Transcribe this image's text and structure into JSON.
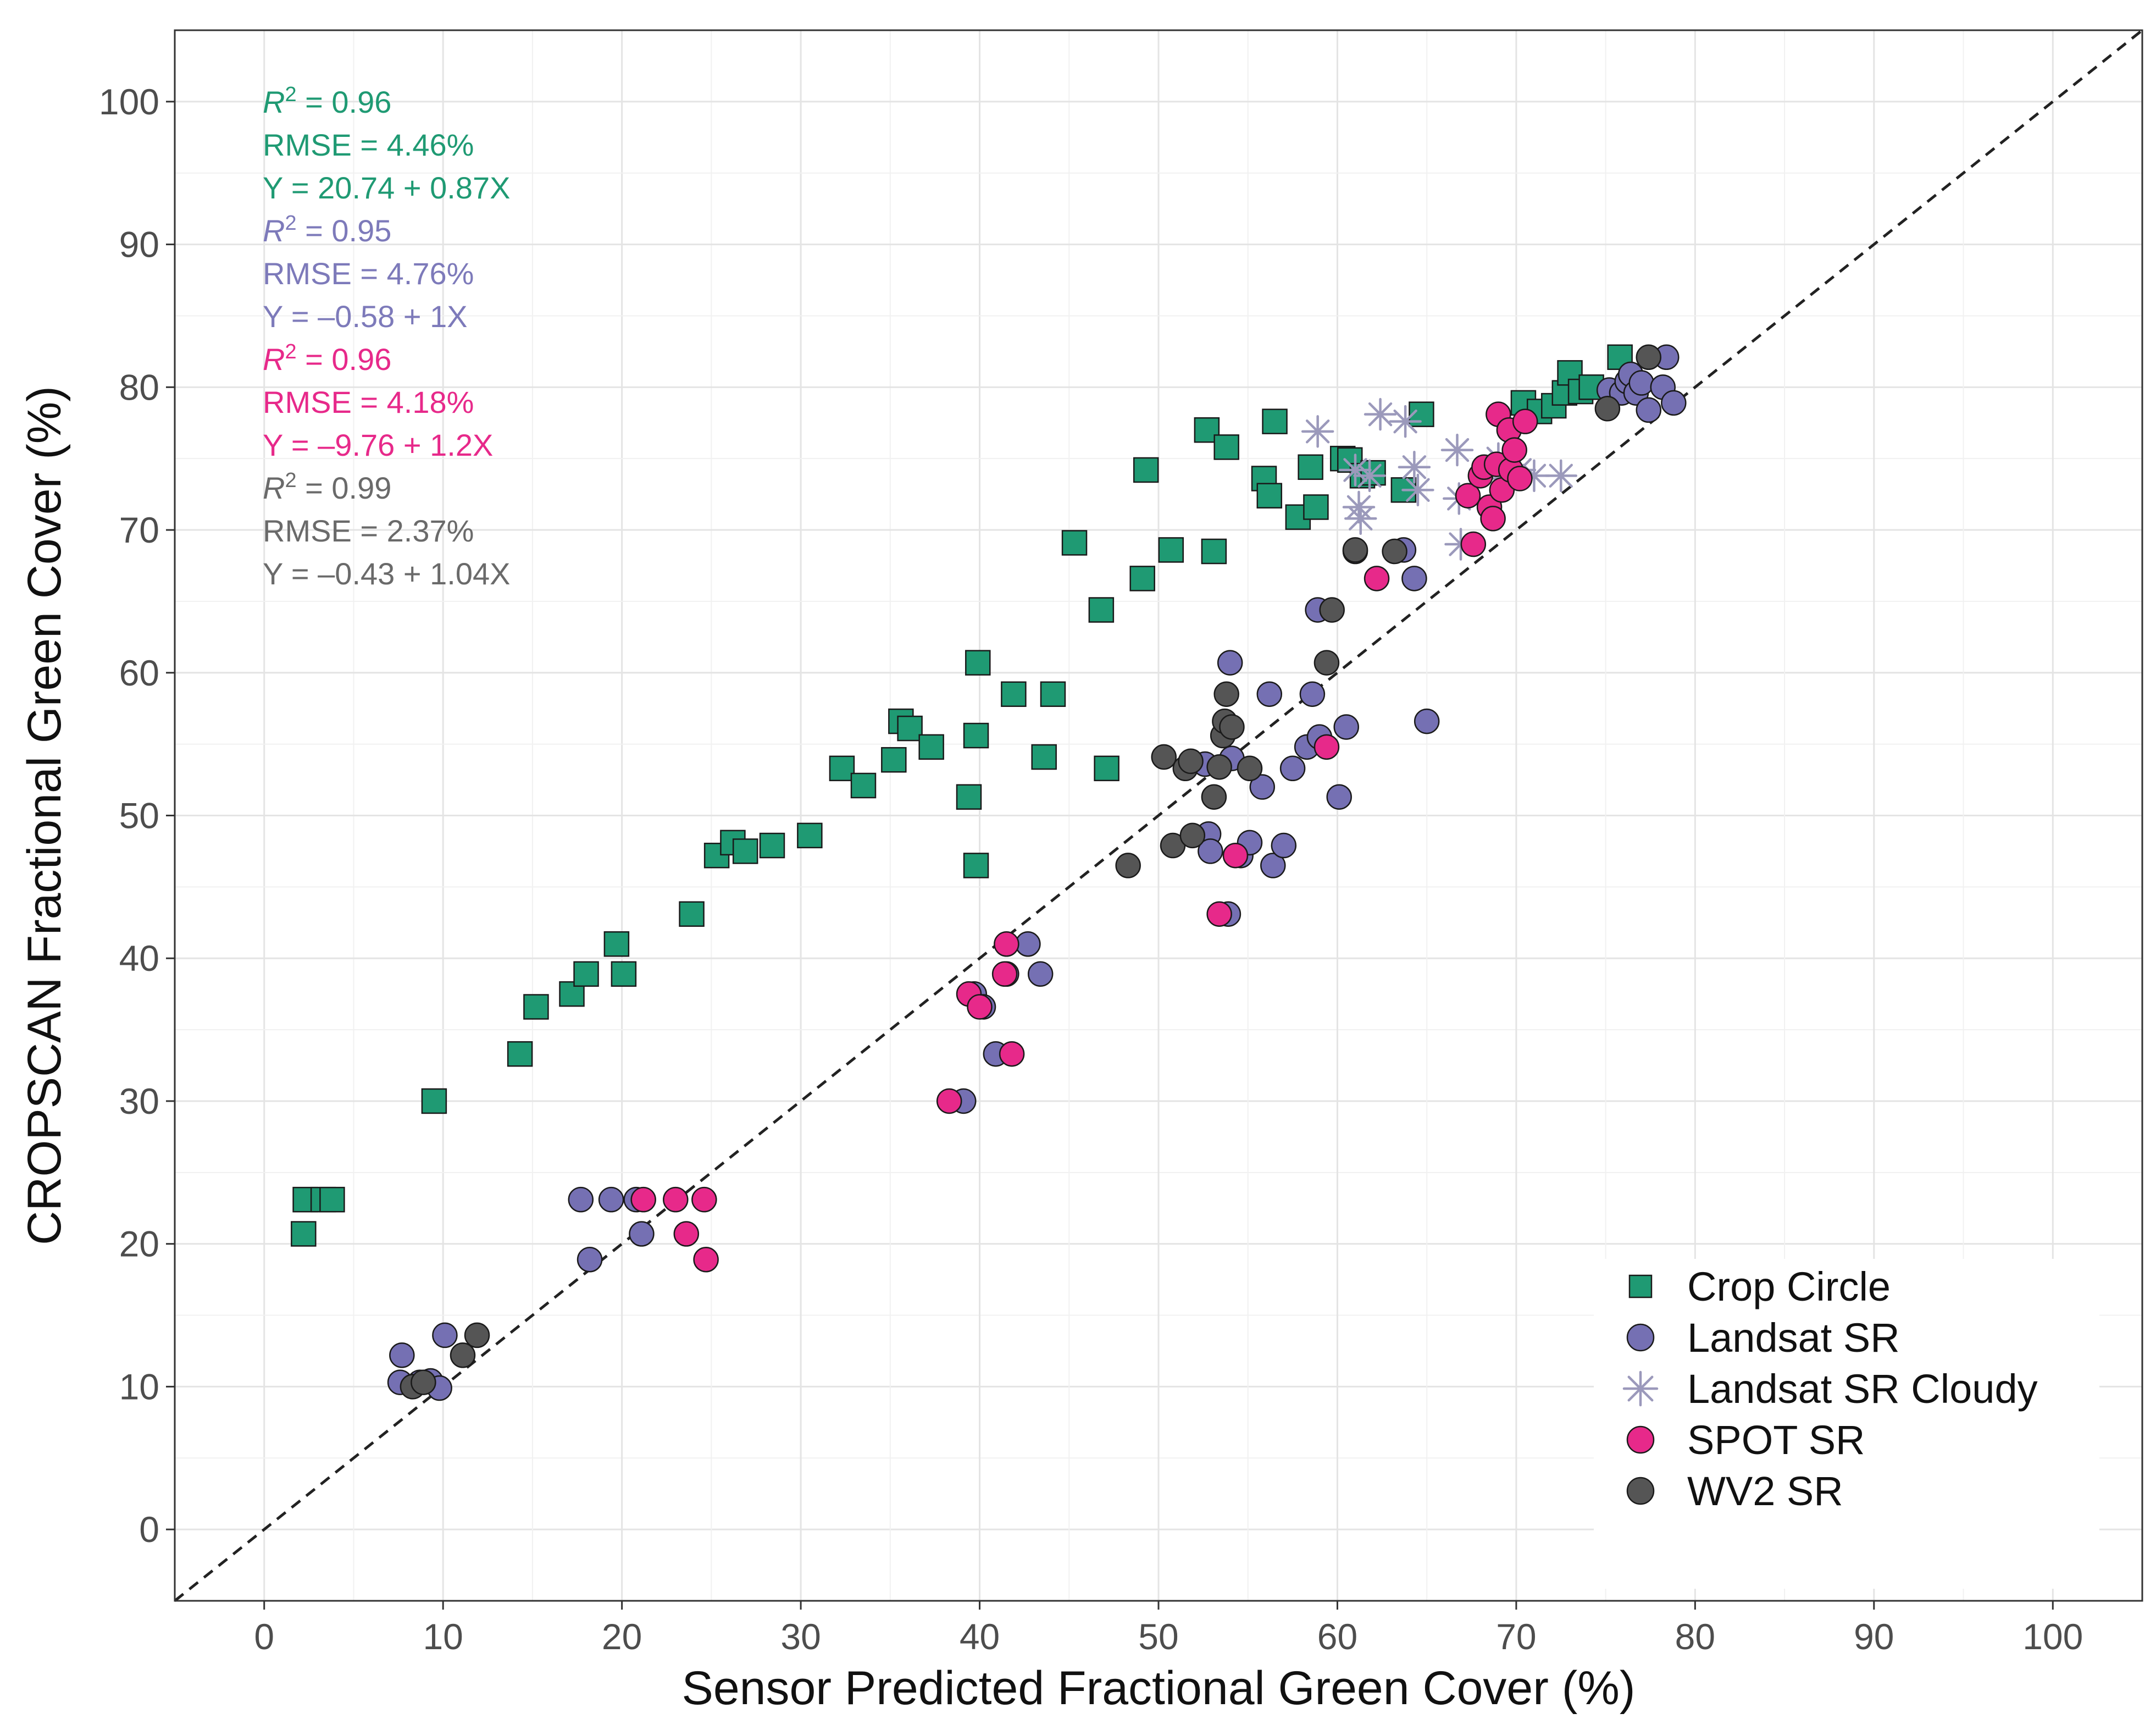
{
  "chart_data": {
    "type": "scatter",
    "xlabel": "Sensor Predicted Fractional Green Cover (%)",
    "ylabel": "CROPSCAN Fractional Green Cover (%)",
    "xlim": [
      -5,
      105
    ],
    "ylim": [
      -5,
      105
    ],
    "x_ticks": [
      "0",
      "10",
      "20",
      "30",
      "40",
      "50",
      "60",
      "70",
      "80",
      "90",
      "100"
    ],
    "y_ticks": [
      "0",
      "10",
      "20",
      "30",
      "40",
      "50",
      "60",
      "70",
      "80",
      "90",
      "100"
    ],
    "grid": true,
    "reference_line": "1:1 dashed",
    "legend_position": "bottom-right",
    "legend": [
      "Crop Circle",
      "Landsat SR",
      "Landsat SR Cloudy",
      "SPOT SR",
      "WV2 SR"
    ],
    "series": [
      {
        "name": "Crop Circle",
        "marker": "square",
        "color": "#1f9a73",
        "points": [
          [
            2.2,
            20.7
          ],
          [
            2.3,
            23.1
          ],
          [
            3.3,
            23.1
          ],
          [
            3.8,
            23.1
          ],
          [
            9.5,
            30.0
          ],
          [
            14.3,
            33.3
          ],
          [
            15.2,
            36.6
          ],
          [
            17.2,
            37.5
          ],
          [
            18.0,
            38.9
          ],
          [
            19.7,
            41.0
          ],
          [
            20.1,
            38.9
          ],
          [
            23.9,
            43.1
          ],
          [
            25.3,
            47.2
          ],
          [
            26.2,
            48.1
          ],
          [
            26.9,
            47.5
          ],
          [
            28.4,
            47.9
          ],
          [
            30.5,
            48.6
          ],
          [
            32.3,
            53.3
          ],
          [
            33.5,
            52.1
          ],
          [
            35.2,
            53.9
          ],
          [
            35.6,
            56.6
          ],
          [
            36.1,
            56.1
          ],
          [
            37.3,
            54.8
          ],
          [
            39.4,
            51.3
          ],
          [
            39.8,
            46.5
          ],
          [
            39.8,
            55.6
          ],
          [
            39.9,
            60.7
          ],
          [
            41.9,
            58.5
          ],
          [
            43.6,
            54.1
          ],
          [
            44.1,
            58.5
          ],
          [
            45.3,
            69.1
          ],
          [
            46.8,
            64.4
          ],
          [
            47.1,
            53.3
          ],
          [
            49.1,
            66.6
          ],
          [
            49.3,
            74.2
          ],
          [
            50.7,
            68.6
          ],
          [
            52.7,
            77.0
          ],
          [
            53.1,
            68.5
          ],
          [
            53.8,
            75.8
          ],
          [
            55.9,
            73.6
          ],
          [
            56.2,
            72.4
          ],
          [
            56.5,
            77.6
          ],
          [
            57.8,
            70.9
          ],
          [
            58.5,
            74.4
          ],
          [
            58.8,
            71.6
          ],
          [
            60.3,
            75.0
          ],
          [
            60.7,
            74.9
          ],
          [
            61.4,
            73.8
          ],
          [
            62.0,
            74.0
          ],
          [
            63.7,
            72.8
          ],
          [
            64.7,
            78.1
          ],
          [
            70.4,
            78.9
          ],
          [
            71.3,
            78.3
          ],
          [
            72.1,
            78.7
          ],
          [
            72.7,
            79.6
          ],
          [
            73.0,
            81.0
          ],
          [
            73.6,
            79.7
          ],
          [
            74.2,
            80.0
          ],
          [
            75.8,
            82.1
          ]
        ]
      },
      {
        "name": "Landsat SR",
        "marker": "circle",
        "color": "#7570b3",
        "points": [
          [
            7.6,
            10.3
          ],
          [
            7.7,
            12.2
          ],
          [
            8.7,
            10.3
          ],
          [
            9.3,
            10.4
          ],
          [
            9.8,
            9.9
          ],
          [
            10.1,
            13.6
          ],
          [
            17.7,
            23.1
          ],
          [
            18.2,
            18.9
          ],
          [
            19.4,
            23.1
          ],
          [
            20.8,
            23.1
          ],
          [
            21.1,
            20.7
          ],
          [
            39.1,
            30.0
          ],
          [
            39.7,
            37.5
          ],
          [
            40.2,
            36.6
          ],
          [
            40.9,
            33.3
          ],
          [
            41.5,
            38.9
          ],
          [
            42.7,
            41.0
          ],
          [
            43.4,
            38.9
          ],
          [
            52.6,
            53.6
          ],
          [
            52.8,
            48.7
          ],
          [
            52.9,
            47.5
          ],
          [
            53.9,
            43.1
          ],
          [
            54.0,
            60.7
          ],
          [
            54.1,
            54.0
          ],
          [
            54.6,
            47.2
          ],
          [
            55.1,
            48.1
          ],
          [
            55.8,
            52.0
          ],
          [
            56.2,
            58.5
          ],
          [
            56.4,
            46.5
          ],
          [
            57.0,
            47.9
          ],
          [
            57.5,
            53.3
          ],
          [
            58.3,
            54.8
          ],
          [
            58.6,
            58.5
          ],
          [
            58.9,
            64.4
          ],
          [
            59.0,
            55.5
          ],
          [
            60.1,
            51.3
          ],
          [
            60.5,
            56.2
          ],
          [
            61.0,
            68.5
          ],
          [
            63.7,
            68.6
          ],
          [
            64.3,
            66.6
          ],
          [
            65.0,
            56.6
          ],
          [
            75.2,
            79.8
          ],
          [
            75.9,
            79.6
          ],
          [
            76.2,
            80.4
          ],
          [
            76.4,
            80.9
          ],
          [
            76.7,
            79.6
          ],
          [
            77.0,
            80.3
          ],
          [
            77.4,
            78.4
          ],
          [
            78.2,
            80.0
          ],
          [
            78.4,
            82.1
          ],
          [
            78.8,
            78.9
          ]
        ]
      },
      {
        "name": "Landsat SR Cloudy",
        "marker": "asterisk",
        "color": "#9b99bb",
        "points": [
          [
            58.9,
            76.9
          ],
          [
            61.0,
            74.2
          ],
          [
            61.2,
            71.6
          ],
          [
            61.3,
            70.8
          ],
          [
            61.8,
            73.8
          ],
          [
            62.4,
            78.1
          ],
          [
            63.8,
            77.6
          ],
          [
            64.3,
            74.4
          ],
          [
            64.5,
            72.8
          ],
          [
            66.7,
            75.6
          ],
          [
            66.8,
            72.2
          ],
          [
            66.9,
            69.0
          ],
          [
            69.0,
            75.0
          ],
          [
            69.2,
            73.6
          ],
          [
            70.2,
            74.2
          ],
          [
            71.0,
            73.8
          ],
          [
            72.5,
            73.8
          ]
        ]
      },
      {
        "name": "SPOT SR",
        "marker": "circle",
        "color": "#e7298a",
        "points": [
          [
            21.2,
            23.1
          ],
          [
            23.0,
            23.1
          ],
          [
            23.6,
            20.7
          ],
          [
            24.6,
            23.1
          ],
          [
            24.7,
            18.9
          ],
          [
            38.3,
            30.0
          ],
          [
            39.4,
            37.5
          ],
          [
            40.0,
            36.6
          ],
          [
            41.4,
            38.9
          ],
          [
            41.5,
            41.0
          ],
          [
            41.8,
            33.3
          ],
          [
            53.4,
            43.1
          ],
          [
            54.3,
            47.2
          ],
          [
            59.4,
            54.8
          ],
          [
            62.2,
            66.6
          ],
          [
            67.3,
            72.4
          ],
          [
            67.6,
            69.0
          ],
          [
            68.0,
            73.8
          ],
          [
            68.2,
            74.4
          ],
          [
            68.5,
            71.6
          ],
          [
            68.7,
            70.8
          ],
          [
            68.9,
            74.6
          ],
          [
            69.0,
            78.1
          ],
          [
            69.2,
            72.8
          ],
          [
            69.6,
            77.0
          ],
          [
            69.7,
            74.2
          ],
          [
            69.9,
            75.6
          ],
          [
            70.2,
            73.6
          ],
          [
            70.5,
            77.6
          ]
        ]
      },
      {
        "name": "WV2 SR",
        "marker": "circle",
        "color": "#555555",
        "points": [
          [
            8.3,
            10.0
          ],
          [
            8.9,
            10.3
          ],
          [
            11.1,
            12.2
          ],
          [
            11.9,
            13.6
          ],
          [
            48.3,
            46.5
          ],
          [
            50.3,
            54.1
          ],
          [
            50.8,
            47.9
          ],
          [
            51.5,
            53.3
          ],
          [
            51.8,
            53.8
          ],
          [
            51.9,
            48.6
          ],
          [
            53.1,
            51.3
          ],
          [
            53.4,
            53.4
          ],
          [
            53.6,
            55.6
          ],
          [
            53.7,
            56.6
          ],
          [
            53.8,
            58.5
          ],
          [
            54.1,
            56.2
          ],
          [
            55.1,
            53.3
          ],
          [
            59.4,
            60.7
          ],
          [
            59.7,
            64.4
          ],
          [
            61.0,
            68.6
          ],
          [
            63.2,
            68.5
          ],
          [
            75.1,
            78.5
          ],
          [
            77.4,
            82.1
          ]
        ]
      }
    ],
    "annotations": [
      {
        "lines": [
          "R2 = 0.96",
          "RMSE = 4.46%",
          "Y = 20.74 + 0.87X"
        ],
        "color": "#1f9a73"
      },
      {
        "lines": [
          "R2 = 0.95",
          "RMSE = 4.76%",
          "Y = –0.58 + 1X"
        ],
        "color": "#7d7aba"
      },
      {
        "lines": [
          "R2 = 0.96",
          "RMSE = 4.18%",
          "Y = –9.76 + 1.2X"
        ],
        "color": "#e7298a"
      },
      {
        "lines": [
          "R2 = 0.99",
          "RMSE = 2.37%",
          "Y = –0.43 + 1.04X"
        ],
        "color": "#6a6a6a"
      }
    ]
  }
}
